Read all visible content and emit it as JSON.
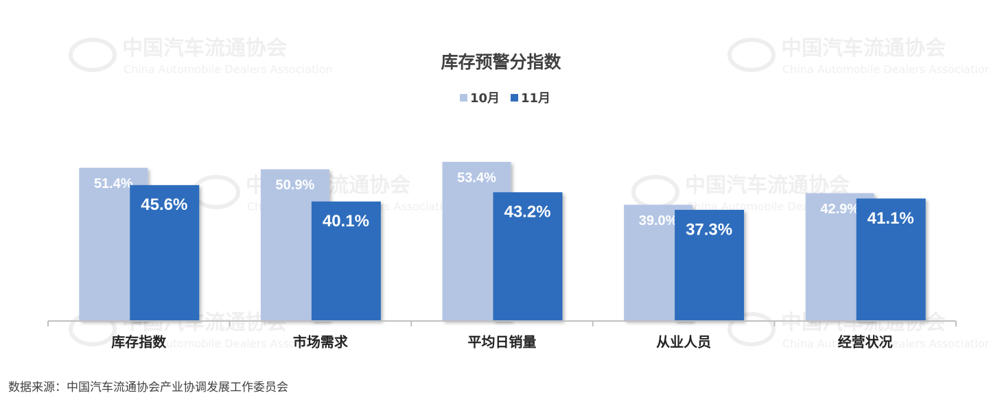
{
  "chart_data": {
    "type": "bar",
    "title": "库存预警分指数",
    "categories": [
      "库存指数",
      "市场需求",
      "平均日销量",
      "从业人员",
      "经营状况"
    ],
    "series": [
      {
        "name": "10月",
        "color": "#b4c5e4",
        "values": [
          51.4,
          50.9,
          53.4,
          39.0,
          42.9
        ],
        "value_labels": [
          "51.4%",
          "50.9%",
          "53.4%",
          "39.0%",
          "42.9%"
        ]
      },
      {
        "name": "11月",
        "color": "#2e6dbd",
        "values": [
          45.6,
          40.1,
          43.2,
          37.3,
          41.1
        ],
        "value_labels": [
          "45.6%",
          "40.1%",
          "43.2%",
          "37.3%",
          "41.1%"
        ]
      }
    ],
    "ylim": [
      0,
      60
    ],
    "legend": "top",
    "watermark": {
      "name": "中国汽车流通协会",
      "english": "China Automobile Dealers Association"
    },
    "source": "数据来源：中国汽车流通协会产业协调发展工作委员会"
  }
}
